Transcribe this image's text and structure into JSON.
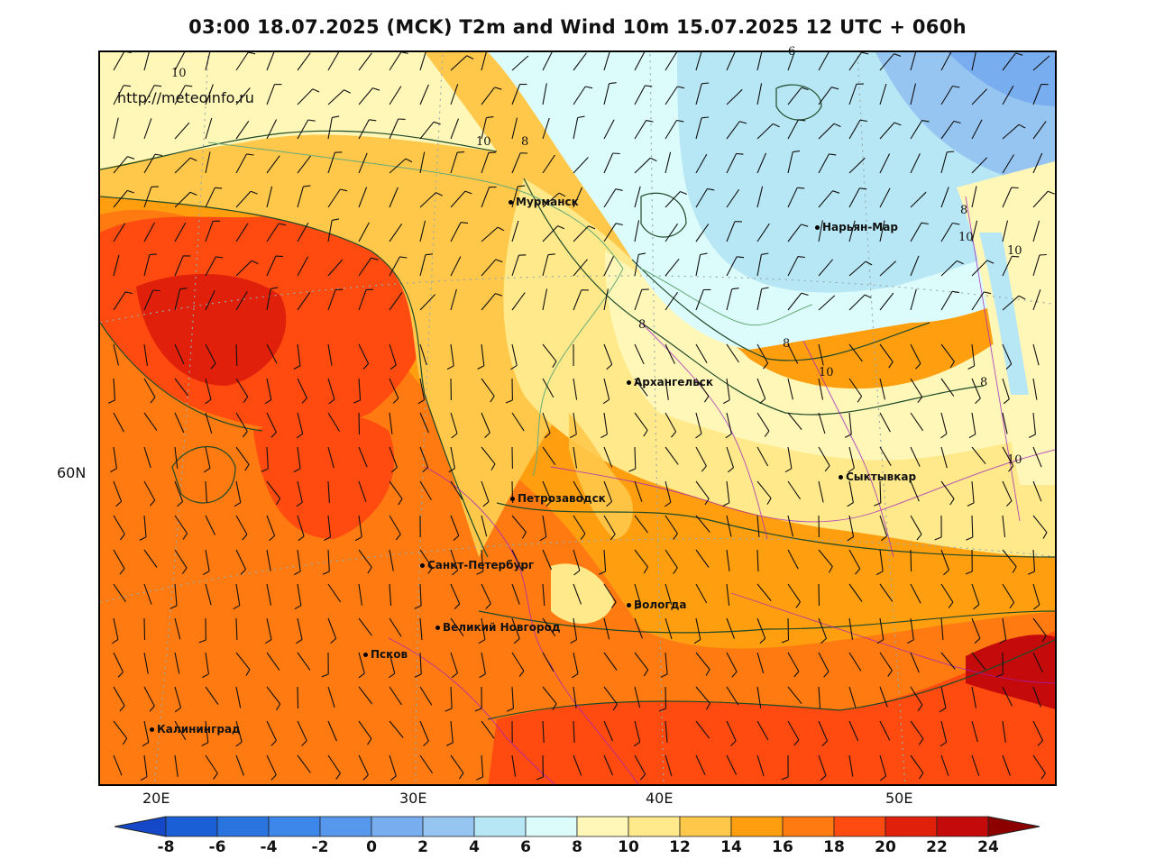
{
  "title": "03:00 18.07.2025 (MCK) T2m and Wind 10m 15.07.2025 12 UTC + 060h",
  "url": "http://meteoinfo.ru",
  "lon_labels": [
    "20E",
    "30E",
    "40E",
    "50E"
  ],
  "lat_labels": [
    "60N"
  ],
  "cities": [
    {
      "name": "Мурманск"
    },
    {
      "name": "Нарьян-Мар"
    },
    {
      "name": "Архангельск"
    },
    {
      "name": "Сыктывкар"
    },
    {
      "name": "Петрозаводск"
    },
    {
      "name": "Санкт-Петербург"
    },
    {
      "name": "Вологда"
    },
    {
      "name": "Великий Новгород"
    },
    {
      "name": "Псков"
    },
    {
      "name": "Калининград"
    }
  ],
  "contour_labels": [
    "10",
    "10",
    "8",
    "8",
    "8",
    "8",
    "10",
    "8",
    "10",
    "10",
    "10",
    "8",
    "10",
    "6"
  ],
  "legend": {
    "labels": [
      "-8",
      "-6",
      "-4",
      "-2",
      "0",
      "2",
      "4",
      "6",
      "8",
      "10",
      "12",
      "14",
      "16",
      "18",
      "20",
      "22",
      "24"
    ],
    "colors": [
      "#1a5fd6",
      "#2a74e0",
      "#3d86ea",
      "#5598ee",
      "#78adf0",
      "#97c5f2",
      "#b7e7f5",
      "#dcfbfb",
      "#fff7b8",
      "#ffe98a",
      "#ffc84a",
      "#ff9f10",
      "#ff7a10",
      "#ff4a10",
      "#e0200a",
      "#c40a0a"
    ],
    "low_color": "#1448c8",
    "high_color": "#8c0000"
  }
}
